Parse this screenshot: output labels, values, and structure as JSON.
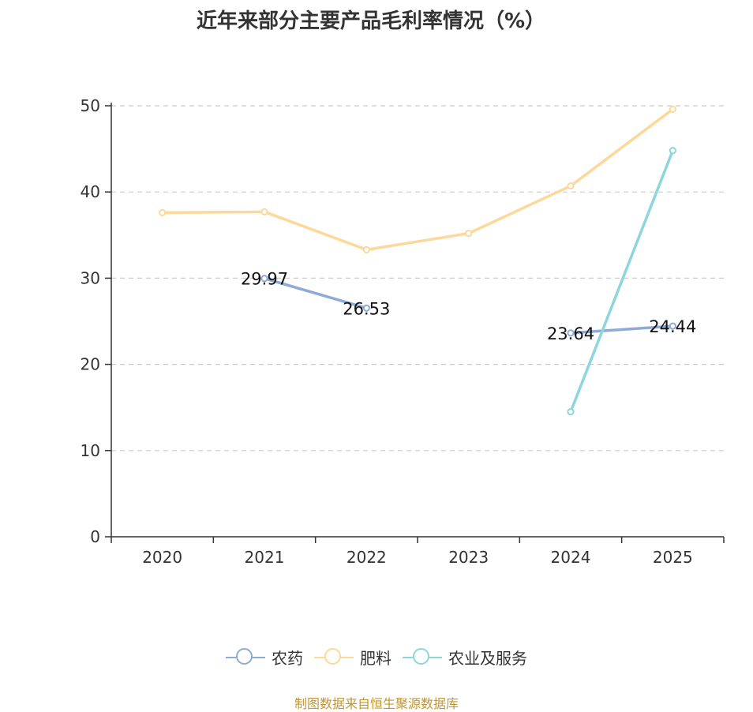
{
  "chart_data": {
    "type": "line",
    "title": "近年来部分主要产品毛利率情况（%）",
    "categories": [
      "2020",
      "2021",
      "2022",
      "2023",
      "2024",
      "2025"
    ],
    "ylim": [
      0,
      50
    ],
    "yticks": [
      "0",
      "10",
      "20",
      "30",
      "40",
      "50"
    ],
    "grid": true,
    "legend_position": "bottom",
    "series": [
      {
        "name": "农药",
        "color": "#8eaad6",
        "values": [
          null,
          29.97,
          26.53,
          null,
          23.64,
          24.44
        ],
        "labels": [
          "",
          "29.97",
          "26.53",
          "",
          "23.64",
          "24.44"
        ]
      },
      {
        "name": "肥料",
        "color": "#fcd99a",
        "values": [
          37.6,
          37.7,
          33.3,
          35.2,
          40.7,
          49.6
        ],
        "labels": [
          "",
          "",
          "",
          "",
          "",
          ""
        ]
      },
      {
        "name": "农业及服务",
        "color": "#8dd6dc",
        "values": [
          null,
          null,
          null,
          null,
          14.5,
          44.8
        ],
        "labels": [
          "",
          "",
          "",
          "",
          "",
          ""
        ]
      }
    ]
  },
  "footer": {
    "source": "制图数据来自恒生聚源数据库"
  }
}
